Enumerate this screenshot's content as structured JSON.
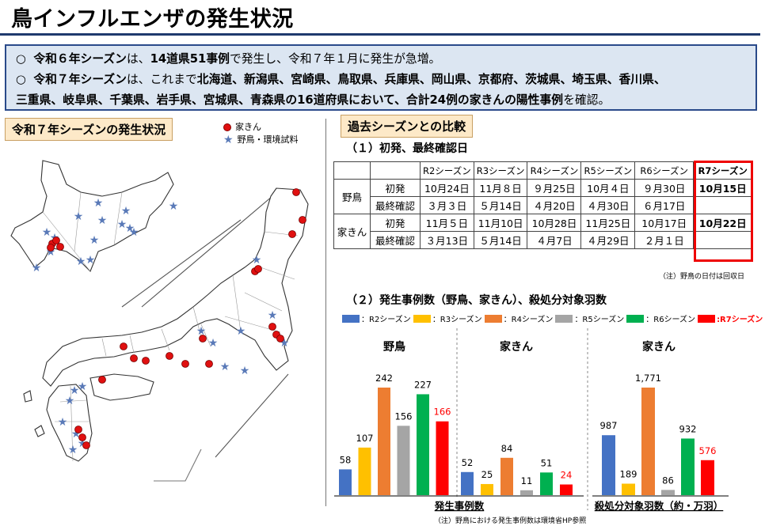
{
  "title": "鳥インフルエンザの発生状況",
  "summary": {
    "line1": {
      "t1": "令和６年シーズン",
      "t2": "は、",
      "t3": "14道県51事例",
      "t4": "で発生し、令和７年１月に発生が急増。"
    },
    "line2": {
      "t1": "令和７年シーズン",
      "t2": "は、これまで",
      "t3": "北海道、新潟県、宮崎県、鳥取県、兵庫県、岡山県、京都府、茨城県、埼玉県、香川県、"
    },
    "line3": {
      "t1": "三重県、岐阜県、千葉県、岩手県、宮城県、青森県の16道府県において、合計24例の家きんの陽性事例",
      "t2": "を確認。"
    }
  },
  "map_section": {
    "label": "令和７年シーズンの発生状況",
    "legend_poultry": "家きん",
    "legend_wild": "野鳥・環境試料",
    "colors": {
      "poultry": "#e01010",
      "wild": "#5a7ab8"
    }
  },
  "compare": {
    "label": "過去シーズンとの比較",
    "sub1": "（１）初発、最終確認日",
    "headers": [
      "R2シーズン",
      "R3シーズン",
      "R4シーズン",
      "R5シーズン",
      "R6シーズン",
      "R7シーズン"
    ],
    "wild_label": "野鳥",
    "poultry_label": "家きん",
    "first_label": "初発",
    "last_label": "最終確認",
    "wild_first": [
      "10月24日",
      "11月８日",
      "９月25日",
      "10月４日",
      "９月30日",
      "10月15日"
    ],
    "wild_last": [
      "３月３日",
      "５月14日",
      "４月20日",
      "４月30日",
      "６月17日",
      ""
    ],
    "poultry_first": [
      "11月５日",
      "11月10日",
      "10月28日",
      "11月25日",
      "10月17日",
      "10月22日"
    ],
    "poultry_last": [
      "３月13日",
      "５月14日",
      "４月7日",
      "４月29日",
      "２月１日",
      ""
    ],
    "note": "（注）野鳥の日付は回収日"
  },
  "chart_section": {
    "sub2": "（２）発生事例数（野鳥、家きん）、殺処分対象羽数",
    "legend": [
      {
        "label": "：R2シーズン",
        "color": "#4472c4"
      },
      {
        "label": "：R3シーズン",
        "color": "#ffc000"
      },
      {
        "label": "：R4シーズン",
        "color": "#ed7d31"
      },
      {
        "label": "：R5シーズン",
        "color": "#a5a5a5"
      },
      {
        "label": "：R6シーズン",
        "color": "#00b050"
      },
      {
        "label": ":R7シーズン",
        "color": "#ff0000"
      }
    ],
    "panel_wild": "野鳥",
    "panel_poultry": "家きん",
    "panel_culled": "家きん",
    "caption_cases": "発生事例数",
    "caption_culled": "殺処分対象羽数（約・万羽）",
    "note": "（注）野鳥における発生事例数は環境省HP参照"
  },
  "chart_data": [
    {
      "type": "bar",
      "title": "野鳥",
      "categories": [
        "R2シーズン",
        "R3シーズン",
        "R4シーズン",
        "R5シーズン",
        "R6シーズン",
        "R7シーズン"
      ],
      "values": [
        58,
        107,
        242,
        156,
        227,
        166
      ],
      "labels": [
        "58",
        "107",
        "242",
        "156",
        "227",
        "166"
      ],
      "ylim": [
        0,
        260
      ]
    },
    {
      "type": "bar",
      "title": "家きん",
      "categories": [
        "R2シーズン",
        "R3シーズン",
        "R4シーズン",
        "R5シーズン",
        "R6シーズン",
        "R7シーズン"
      ],
      "values": [
        52,
        25,
        84,
        11,
        51,
        24
      ],
      "labels": [
        "52",
        "25",
        "84",
        "11",
        "51",
        "24"
      ],
      "ylim": [
        0,
        260
      ]
    },
    {
      "type": "bar",
      "title": "家きん",
      "categories": [
        "R2シーズン",
        "R3シーズン",
        "R4シーズン",
        "R5シーズン",
        "R6シーズン",
        "R7シーズン"
      ],
      "values": [
        987,
        189,
        1771,
        86,
        932,
        576
      ],
      "labels": [
        "987",
        "189",
        "1,771",
        "86",
        "932",
        "576"
      ],
      "ylim": [
        0,
        1900
      ]
    }
  ]
}
